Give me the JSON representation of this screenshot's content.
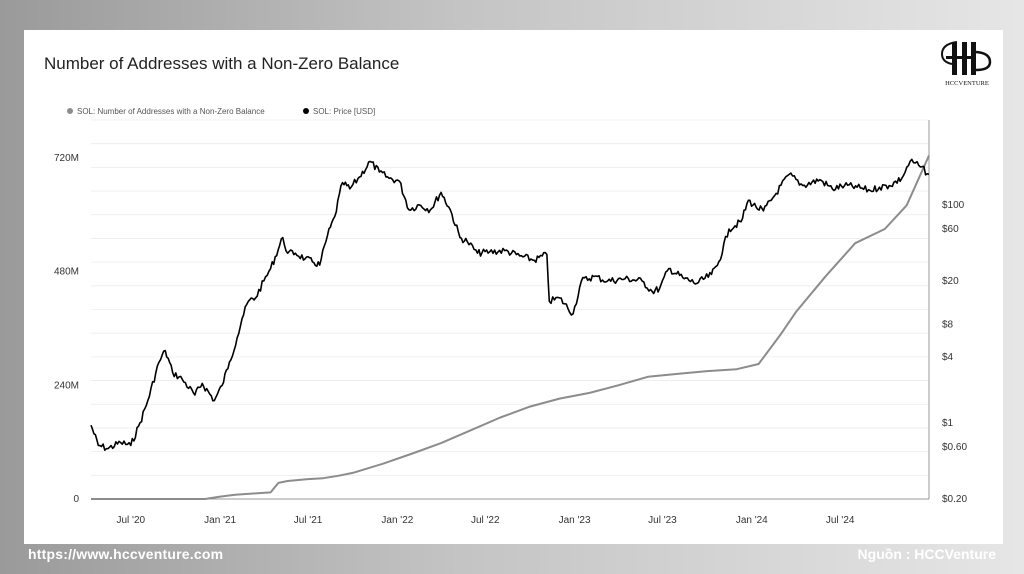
{
  "page": {
    "footer_url": "https://www.hccventure.com",
    "footer_source": "Nguồn : HCCVenture",
    "logo_text": "HCCVENTURE"
  },
  "colors": {
    "price_series": "#000000",
    "addresses_series": "#8c8c8c",
    "grid": "#ececec",
    "axis": "#9a9a9a"
  },
  "chart_data": {
    "type": "line",
    "title": "Number of Addresses with a Non-Zero Balance",
    "legend_placement": "top-left",
    "grid": true,
    "x_tick_labels": [
      "Jul '20",
      "Jan '21",
      "Jul '21",
      "Jan '22",
      "Jul '22",
      "Jan '23",
      "Jul '23",
      "Jan '24",
      "Jul '24"
    ],
    "x_tick_dates": [
      "2020-07-01",
      "2021-01-01",
      "2021-07-01",
      "2022-01-01",
      "2022-07-01",
      "2023-01-01",
      "2023-07-01",
      "2024-01-01",
      "2024-07-01"
    ],
    "x_range": [
      "2020-04-10",
      "2024-12-31"
    ],
    "left_axis": {
      "label": "",
      "range": [
        0,
        800000000
      ],
      "ticks": [
        0,
        240000000,
        480000000,
        720000000
      ],
      "tick_labels": [
        "0",
        "240M",
        "480M",
        "720M"
      ]
    },
    "right_axis": {
      "label": "",
      "scale": "log",
      "range": [
        0.2,
        600
      ],
      "ticks": [
        0.2,
        0.6,
        1,
        4,
        8,
        20,
        60,
        100
      ],
      "tick_labels": [
        "$0.20",
        "$0.60",
        "$1",
        "$4",
        "$8",
        "$20",
        "$60",
        "$100"
      ]
    },
    "series": [
      {
        "name": "SOL: Number of Addresses with a Non-Zero Balance",
        "axis": "left",
        "x": [
          "2020-04-10",
          "2020-12-01",
          "2021-01-01",
          "2021-02-01",
          "2021-04-15",
          "2021-05-01",
          "2021-05-20",
          "2021-07-01",
          "2021-08-01",
          "2021-09-01",
          "2021-10-01",
          "2021-12-01",
          "2022-02-01",
          "2022-04-01",
          "2022-06-01",
          "2022-08-01",
          "2022-10-01",
          "2022-12-01",
          "2023-02-01",
          "2023-04-01",
          "2023-06-01",
          "2023-08-01",
          "2023-10-01",
          "2023-12-01",
          "2024-01-15",
          "2024-03-01",
          "2024-04-01",
          "2024-06-01",
          "2024-08-01",
          "2024-10-01",
          "2024-11-15",
          "2024-12-31"
        ],
        "values": [
          0,
          0,
          5000000,
          9000000,
          14000000,
          34000000,
          38000000,
          42000000,
          44000000,
          49000000,
          55000000,
          74000000,
          96000000,
          118000000,
          145000000,
          172000000,
          195000000,
          212000000,
          224000000,
          240000000,
          258000000,
          264000000,
          270000000,
          274000000,
          285000000,
          348000000,
          395000000,
          470000000,
          540000000,
          570000000,
          620000000,
          725000000
        ]
      },
      {
        "name": "SOL: Price [USD]",
        "axis": "right",
        "x": [
          "2020-04-10",
          "2020-04-25",
          "2020-05-15",
          "2020-06-10",
          "2020-07-01",
          "2020-07-20",
          "2020-08-05",
          "2020-08-28",
          "2020-09-10",
          "2020-09-25",
          "2020-10-15",
          "2020-11-10",
          "2020-11-25",
          "2020-12-20",
          "2021-01-05",
          "2021-01-20",
          "2021-02-05",
          "2021-02-15",
          "2021-02-28",
          "2021-03-15",
          "2021-04-01",
          "2021-04-15",
          "2021-05-10",
          "2021-05-20",
          "2021-06-05",
          "2021-06-25",
          "2021-07-10",
          "2021-07-25",
          "2021-08-10",
          "2021-08-25",
          "2021-09-10",
          "2021-09-25",
          "2021-10-15",
          "2021-11-06",
          "2021-11-25",
          "2021-12-15",
          "2022-01-05",
          "2022-01-25",
          "2022-02-15",
          "2022-03-10",
          "2022-04-01",
          "2022-04-20",
          "2022-05-10",
          "2022-05-25",
          "2022-06-15",
          "2022-07-10",
          "2022-08-10",
          "2022-09-10",
          "2022-10-10",
          "2022-11-05",
          "2022-11-10",
          "2022-12-01",
          "2022-12-29",
          "2023-01-15",
          "2023-02-10",
          "2023-03-10",
          "2023-04-15",
          "2023-05-20",
          "2023-06-10",
          "2023-06-25",
          "2023-07-14",
          "2023-08-15",
          "2023-09-10",
          "2023-10-10",
          "2023-10-25",
          "2023-11-15",
          "2023-12-10",
          "2023-12-25",
          "2024-01-10",
          "2024-01-25",
          "2024-02-10",
          "2024-03-18",
          "2024-04-15",
          "2024-05-20",
          "2024-06-15",
          "2024-07-10",
          "2024-08-05",
          "2024-09-01",
          "2024-09-20",
          "2024-10-10",
          "2024-11-05",
          "2024-11-22",
          "2024-12-10",
          "2024-12-31"
        ],
        "values": [
          0.95,
          0.62,
          0.58,
          0.66,
          0.62,
          1.0,
          1.6,
          3.6,
          4.6,
          2.9,
          2.5,
          1.8,
          2.3,
          1.6,
          2.2,
          3.6,
          6.0,
          9.0,
          13.0,
          14.0,
          20.0,
          26.0,
          50.0,
          36.0,
          36.0,
          32.0,
          30.0,
          28.0,
          52.0,
          78.0,
          160.0,
          140.0,
          180.0,
          250.0,
          200.0,
          175.0,
          165.0,
          90.0,
          100.0,
          90.0,
          130.0,
          90.0,
          50.0,
          46.0,
          36.0,
          37.0,
          38.0,
          34.0,
          31.0,
          35.0,
          13.0,
          14.0,
          10.0,
          20.0,
          22.0,
          20.0,
          21.0,
          20.0,
          16.0,
          17.0,
          26.0,
          21.0,
          19.0,
          23.0,
          30.0,
          60.0,
          70.0,
          110.0,
          95.0,
          88.0,
          110.0,
          190.0,
          150.0,
          170.0,
          140.0,
          150.0,
          145.0,
          135.0,
          145.0,
          150.0,
          175.0,
          250.0,
          230.0,
          190.0
        ]
      }
    ]
  }
}
